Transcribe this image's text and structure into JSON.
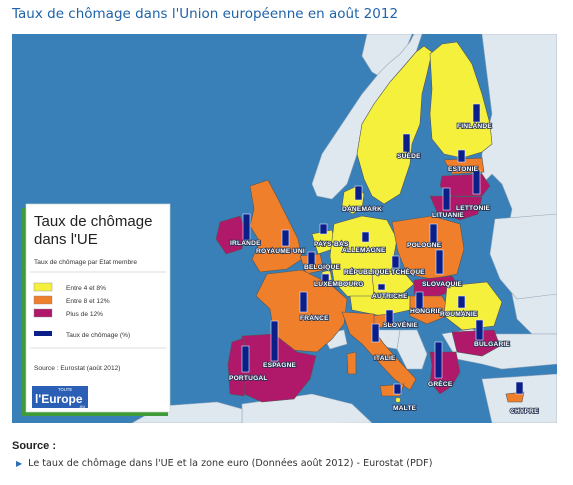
{
  "title": "Taux de chômage dans l'Union européenne en août 2012",
  "colors": {
    "sea": "#3a80b8",
    "non_eu": "#dfe8ef",
    "low": "#f5f03c",
    "mid": "#ef7f2a",
    "high": "#b0196a",
    "bar": "#0b1f88",
    "legend_bg": "#ffffff",
    "legend_border": "#3f9a3a"
  },
  "legend": {
    "title_line1": "Taux de chômage",
    "title_line2": "dans l'UE",
    "subtitle": "Taux de chômage par Etat membre",
    "items": [
      {
        "label": "Entre 4 et 8%",
        "category": "low"
      },
      {
        "label": "Entre 8 et 12%",
        "category": "mid"
      },
      {
        "label": "Plus de 12%",
        "category": "high"
      },
      {
        "label": "Taux de chômage (%)",
        "category": "bar"
      }
    ],
    "source": "Source : Eurostat (août 2012)",
    "logo_top": "TOUTE",
    "logo_main": "l'Europe",
    "logo_tld": ".eu"
  },
  "countries": [
    {
      "label": "FINLANDE",
      "category": "low"
    },
    {
      "label": "SUÈDE",
      "category": "low"
    },
    {
      "label": "ESTONIE",
      "category": "mid"
    },
    {
      "label": "LETTONIE",
      "category": "high"
    },
    {
      "label": "LITUANIE",
      "category": "high"
    },
    {
      "label": "DANEMARK",
      "category": "low"
    },
    {
      "label": "IRLANDE",
      "category": "high"
    },
    {
      "label": "ROYAUME-UNI",
      "category": "mid"
    },
    {
      "label": "PAYS-BAS",
      "category": "low"
    },
    {
      "label": "ALLEMAGNE",
      "category": "low"
    },
    {
      "label": "POLOGNE",
      "category": "mid"
    },
    {
      "label": "BELGIQUE",
      "category": "mid"
    },
    {
      "label": "LUXEMBOURG",
      "category": "low"
    },
    {
      "label": "RÉPUBLIQUE TCHÈQUE",
      "category": "low"
    },
    {
      "label": "SLOVAQUIE",
      "category": "high"
    },
    {
      "label": "AUTRICHE",
      "category": "low"
    },
    {
      "label": "HONGRIE",
      "category": "mid"
    },
    {
      "label": "ROUMANIE",
      "category": "low"
    },
    {
      "label": "FRANCE",
      "category": "mid"
    },
    {
      "label": "SLOVÉNIE",
      "category": "mid"
    },
    {
      "label": "ITALIE",
      "category": "mid"
    },
    {
      "label": "BULGARIE",
      "category": "high"
    },
    {
      "label": "ESPAGNE",
      "category": "high"
    },
    {
      "label": "PORTUGAL",
      "category": "high"
    },
    {
      "label": "GRÈCE",
      "category": "high"
    },
    {
      "label": "MALTE",
      "category": "low"
    },
    {
      "label": "CHYPRE",
      "category": "mid"
    }
  ],
  "source_section": {
    "heading": "Source :",
    "link_text": "Le taux de chômage dans l'UE et la zone euro  (Données août 2012)",
    "separator": " - ",
    "publisher": "Eurostat (PDF)"
  }
}
